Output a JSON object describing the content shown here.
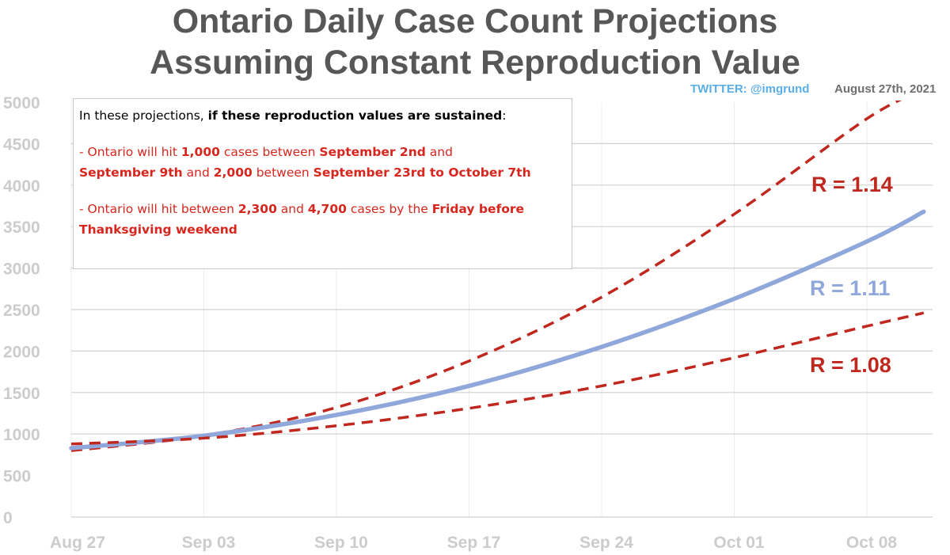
{
  "title_line1": "Ontario Daily Case Count Projections",
  "title_line2": "Assuming Constant Reproduction Value",
  "twitter": "TWITTER: @imgrund",
  "date": "August 27th, 2021",
  "annotation": {
    "line1_pre": "In these projections, ",
    "line1_bold": "if these reproduction values are sustained",
    "line1_post": ":",
    "b1_a": " - Ontario will hit ",
    "b1_b": "1,000",
    "b1_c": " cases between ",
    "b1_d": "September 2nd",
    "b1_e": " and",
    "b1_f": "September 9th",
    "b1_g": " and  ",
    "b1_h": "2,000",
    "b1_i": " between ",
    "b1_j": "September 23rd to October 7th",
    "b2_a": " - Ontario will hit between ",
    "b2_b": "2,300",
    "b2_c": " and ",
    "b2_d": "4,700",
    "b2_e": " cases by the ",
    "b2_f": "Friday before",
    "b2_g": "Thanksgiving weekend"
  },
  "colors": {
    "dashed": "#c0281f",
    "solid": "#8fa7da",
    "axis_text": "#cccccc",
    "grid": "#d0d0d0",
    "vgrid": "#ececec"
  },
  "chart_data": {
    "type": "line",
    "title": "Ontario Daily Case Count Projections Assuming Constant Reproduction Value",
    "xlabel": "",
    "ylabel": "",
    "x_ticks": [
      "Aug 27",
      "Sep 03",
      "Sep 10",
      "Sep 17",
      "Sep 24",
      "Oct 01",
      "Oct 08"
    ],
    "x_range": [
      "2021-08-27",
      "2021-10-11"
    ],
    "y_ticks": [
      0,
      500,
      1000,
      1500,
      2000,
      2500,
      3000,
      3500,
      4000,
      4500,
      5000
    ],
    "ylim": [
      0,
      5000
    ],
    "grid": "horizontal from 1000 upward, light vertical at weekly ticks",
    "series": [
      {
        "name": "R = 1.14",
        "style": "dashed",
        "points": [
          [
            "2021-08-27",
            800
          ],
          [
            "2021-09-03",
            980
          ],
          [
            "2021-09-10",
            1320
          ],
          [
            "2021-09-17",
            1880
          ],
          [
            "2021-09-24",
            2650
          ],
          [
            "2021-10-01",
            3650
          ],
          [
            "2021-10-08",
            4800
          ],
          [
            "2021-10-11",
            5150
          ]
        ]
      },
      {
        "name": "R = 1.11",
        "style": "solid",
        "points": [
          [
            "2021-08-27",
            830
          ],
          [
            "2021-09-03",
            980
          ],
          [
            "2021-09-10",
            1230
          ],
          [
            "2021-09-17",
            1580
          ],
          [
            "2021-09-24",
            2050
          ],
          [
            "2021-10-01",
            2630
          ],
          [
            "2021-10-08",
            3320
          ],
          [
            "2021-10-11",
            3680
          ]
        ]
      },
      {
        "name": "R = 1.08",
        "style": "dashed",
        "points": [
          [
            "2021-08-27",
            880
          ],
          [
            "2021-09-03",
            950
          ],
          [
            "2021-09-10",
            1100
          ],
          [
            "2021-09-17",
            1310
          ],
          [
            "2021-09-24",
            1580
          ],
          [
            "2021-10-01",
            1920
          ],
          [
            "2021-10-08",
            2300
          ],
          [
            "2021-10-11",
            2460
          ]
        ]
      }
    ]
  }
}
